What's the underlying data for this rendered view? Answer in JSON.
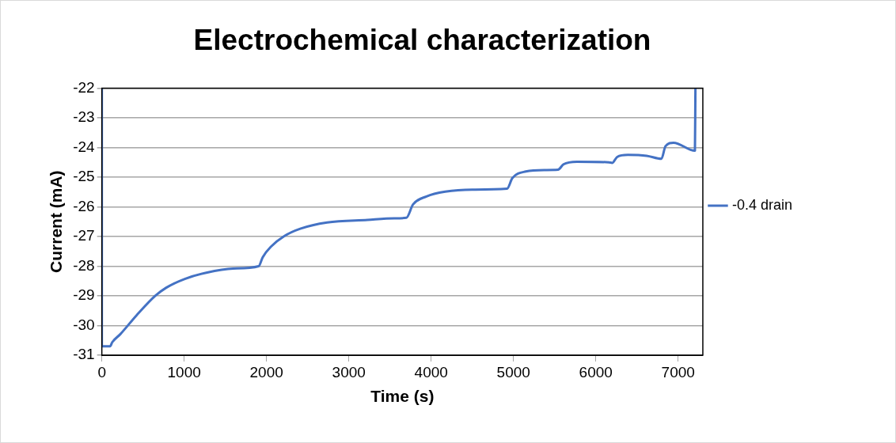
{
  "chart_data": {
    "type": "line",
    "title": "Electrochemical characterization",
    "xlabel": "Time (s)",
    "ylabel": "Current (mA)",
    "xlim": [
      0,
      7300
    ],
    "xticks": [
      0,
      1000,
      2000,
      3000,
      4000,
      5000,
      6000,
      7000
    ],
    "ylim": [
      -31,
      -22
    ],
    "yticks": [
      -31,
      -30,
      -29,
      -28,
      -27,
      -26,
      -25,
      -24,
      -23,
      -22
    ],
    "grid": "y",
    "legend": "right",
    "marker": "none",
    "line_style": "solid",
    "series": [
      {
        "name": "-0.4 drain",
        "color": "#4472c4",
        "x": [
          0,
          0,
          100,
          127,
          225,
          421,
          649,
          779,
          1008,
          1269,
          1595,
          1905,
          1954,
          2052,
          2215,
          2410,
          2736,
          3226,
          3552,
          3699,
          3780,
          3943,
          4171,
          4498,
          4922,
          4987,
          5150,
          5379,
          5541,
          5607,
          5770,
          6161,
          6200,
          6259,
          6389,
          6618,
          6797,
          6846,
          6944,
          7204,
          7210
        ],
        "values": [
          -22,
          -30.7,
          -30.7,
          -30.56,
          -30.29,
          -29.66,
          -29.0,
          -28.73,
          -28.43,
          -28.22,
          -28.08,
          -28.0,
          -27.7,
          -27.35,
          -26.99,
          -26.74,
          -26.53,
          -26.44,
          -26.39,
          -26.37,
          -25.92,
          -25.65,
          -25.49,
          -25.42,
          -25.39,
          -25.03,
          -24.81,
          -24.76,
          -24.75,
          -24.57,
          -24.48,
          -24.5,
          -24.52,
          -24.32,
          -24.25,
          -24.28,
          -24.38,
          -23.96,
          -23.84,
          -24.11,
          -22
        ]
      }
    ]
  }
}
